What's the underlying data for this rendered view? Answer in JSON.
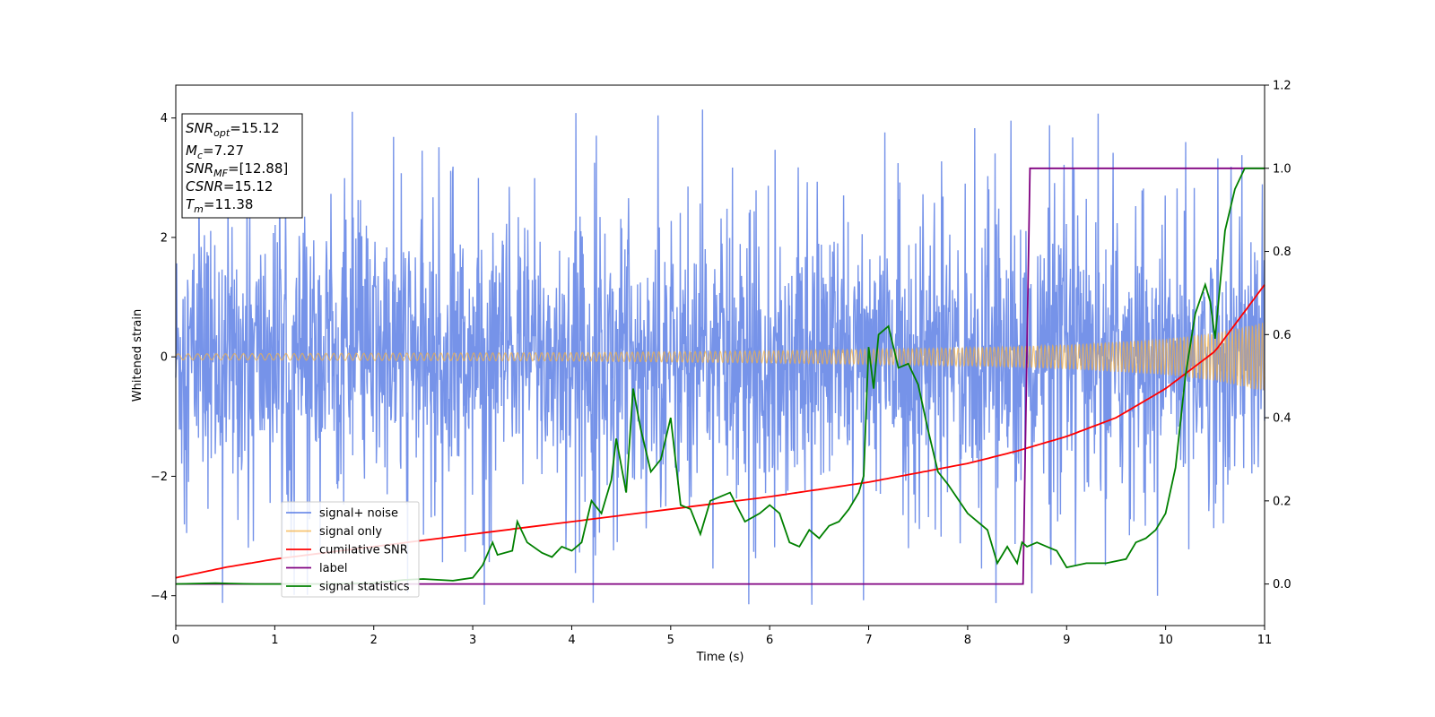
{
  "chart_data": {
    "type": "line",
    "xlabel": "Time (s)",
    "ylabel": "Whitened strain",
    "xlim": [
      0,
      11
    ],
    "ylim_left": [
      -4.5,
      4.55
    ],
    "ylim_right": [
      -0.1,
      1.2
    ],
    "x_ticks": [
      0,
      1,
      2,
      3,
      4,
      5,
      6,
      7,
      8,
      9,
      10,
      11
    ],
    "y_ticks_left": [
      -4,
      -2,
      0,
      2,
      4
    ],
    "y_ticks_right": [
      0.0,
      0.2,
      0.4,
      0.6,
      0.8,
      1.0,
      1.2
    ],
    "grid": false,
    "legend_location": "lower-left",
    "annotation": {
      "lines": [
        {
          "main": "SNR",
          "sub": "opt",
          "value": "=15.12"
        },
        {
          "main": "M",
          "sub": "c",
          "value": "=7.27"
        },
        {
          "main": "SNR",
          "sub": "MF",
          "value": "=[12.88]"
        },
        {
          "main": "CSNR",
          "sub": "",
          "value": "=15.12"
        },
        {
          "main": "T",
          "sub": "m",
          "value": "=11.38"
        }
      ]
    },
    "series": [
      {
        "name": "signal+ noise",
        "color": "#4169e1",
        "axis": "left",
        "style": "noise",
        "typical_abs_amplitude": 2.5,
        "peak_abs_amplitude": 4.15
      },
      {
        "name": "signal only",
        "color": "#f5b042",
        "axis": "left",
        "style": "chirp",
        "envelope_x": [
          0,
          2,
          4,
          6,
          8,
          9,
          10,
          10.5,
          11
        ],
        "envelope_y": [
          0.05,
          0.06,
          0.07,
          0.1,
          0.15,
          0.2,
          0.3,
          0.4,
          0.58
        ]
      },
      {
        "name": "cumilative SNR",
        "color": "#ff0000",
        "axis": "right",
        "x": [
          0,
          0.5,
          1,
          2,
          3,
          4,
          5,
          6,
          7,
          8,
          8.5,
          9,
          9.5,
          10,
          10.5,
          11
        ],
        "y": [
          0.015,
          0.04,
          0.06,
          0.09,
          0.12,
          0.15,
          0.18,
          0.21,
          0.245,
          0.29,
          0.32,
          0.355,
          0.4,
          0.47,
          0.56,
          0.72
        ]
      },
      {
        "name": "label",
        "color": "#800080",
        "axis": "right",
        "x": [
          0,
          8.56,
          8.63,
          11
        ],
        "y": [
          0,
          0,
          1,
          1
        ]
      },
      {
        "name": "signal statistics",
        "color": "#008000",
        "axis": "right",
        "x": [
          0,
          0.4,
          0.8,
          1,
          1.5,
          2,
          2.3,
          2.5,
          2.8,
          3.0,
          3.1,
          3.2,
          3.25,
          3.4,
          3.45,
          3.55,
          3.7,
          3.8,
          3.9,
          4.0,
          4.1,
          4.2,
          4.3,
          4.4,
          4.45,
          4.55,
          4.62,
          4.7,
          4.8,
          4.9,
          5.0,
          5.1,
          5.2,
          5.3,
          5.4,
          5.5,
          5.6,
          5.75,
          5.9,
          6.0,
          6.1,
          6.2,
          6.3,
          6.4,
          6.5,
          6.6,
          6.7,
          6.8,
          6.9,
          6.95,
          7.0,
          7.05,
          7.1,
          7.2,
          7.3,
          7.4,
          7.5,
          7.6,
          7.7,
          7.8,
          8.0,
          8.2,
          8.3,
          8.4,
          8.5,
          8.55,
          8.6,
          8.7,
          8.8,
          8.9,
          9.0,
          9.2,
          9.4,
          9.6,
          9.7,
          9.8,
          9.9,
          10.0,
          10.1,
          10.2,
          10.3,
          10.4,
          10.45,
          10.5,
          10.6,
          10.7,
          10.8,
          10.9,
          11.0
        ],
        "y": [
          0.0,
          0.002,
          0.0,
          0.0,
          0.0,
          0.002,
          0.01,
          0.012,
          0.008,
          0.015,
          0.045,
          0.1,
          0.07,
          0.08,
          0.15,
          0.1,
          0.075,
          0.065,
          0.09,
          0.08,
          0.1,
          0.2,
          0.17,
          0.25,
          0.35,
          0.22,
          0.47,
          0.37,
          0.27,
          0.3,
          0.4,
          0.19,
          0.18,
          0.12,
          0.2,
          0.21,
          0.22,
          0.15,
          0.17,
          0.19,
          0.17,
          0.1,
          0.09,
          0.13,
          0.11,
          0.14,
          0.15,
          0.18,
          0.22,
          0.26,
          0.57,
          0.47,
          0.6,
          0.62,
          0.52,
          0.53,
          0.48,
          0.37,
          0.27,
          0.24,
          0.17,
          0.13,
          0.05,
          0.09,
          0.05,
          0.1,
          0.09,
          0.1,
          0.09,
          0.08,
          0.04,
          0.05,
          0.05,
          0.06,
          0.1,
          0.11,
          0.13,
          0.17,
          0.28,
          0.5,
          0.65,
          0.72,
          0.68,
          0.59,
          0.85,
          0.95,
          1.0,
          1.0,
          1.0
        ]
      }
    ]
  }
}
